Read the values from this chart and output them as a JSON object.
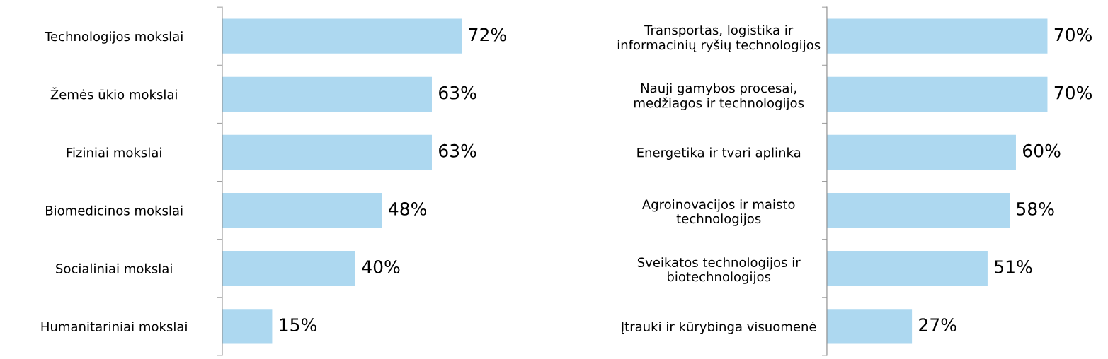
{
  "chart_data": [
    {
      "type": "bar",
      "orientation": "horizontal",
      "categories": [
        "Technologijos mokslai",
        "Žemės ūkio mokslai",
        "Fiziniai mokslai",
        "Biomedicinos mokslai",
        "Socialiniai mokslai",
        "Humanitariniai mokslai"
      ],
      "values": [
        72,
        63,
        63,
        48,
        40,
        15
      ],
      "color": "#add8f0",
      "data_labels": true,
      "value_labels": [
        "72%",
        "63%",
        "63%",
        "48%",
        "40%",
        "15%"
      ],
      "tick_labels": "y",
      "grid": false,
      "legend": false
    },
    {
      "type": "bar",
      "orientation": "horizontal",
      "categories": [
        "Transportas, logistika ir\ninformacinių ryšių technologijos",
        "Nauji gamybos procesai,\nmedžiagos ir technologijos",
        "Energetika ir tvari aplinka",
        "Agroinovacijos ir maisto\ntechnologijos",
        "Sveikatos technologijos ir\nbiotechnologijos",
        "Įtrauki ir kūrybinga visuomenė"
      ],
      "values": [
        70,
        70,
        60,
        58,
        51,
        27
      ],
      "color": "#add8f0",
      "data_labels": true,
      "value_labels": [
        "70%",
        "70%",
        "60%",
        "58%",
        "51%",
        "27%"
      ],
      "tick_labels": "y",
      "grid": false,
      "legend": false
    }
  ]
}
